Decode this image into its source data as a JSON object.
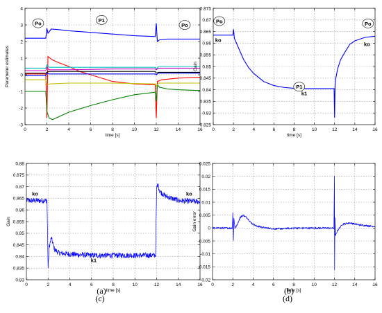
{
  "colors": {
    "blue": "#0000ff",
    "red": "#ff0000",
    "green": "#008000",
    "cyan": "#00bfbf",
    "magenta": "#bf00bf",
    "yellow": "#bfbf00",
    "black": "#000000",
    "grid": "#9a9a9a"
  },
  "chart_data": [
    {
      "id": "a",
      "panel_label": "(a)",
      "type": "line",
      "xlabel": "time [s]",
      "ylabel": "Parameter estimates",
      "xlim": [
        0,
        16
      ],
      "ylim": [
        -3,
        4
      ],
      "xticks": [
        0,
        2,
        4,
        6,
        8,
        10,
        12,
        14,
        16
      ],
      "yticks": [
        -3,
        -2,
        -1,
        0,
        1,
        2,
        3,
        4
      ],
      "grid": true,
      "series": [
        {
          "color": "blue",
          "x": [
            0,
            1.9,
            2.0,
            2.1,
            2.4,
            3,
            4,
            6,
            8,
            10,
            11.9,
            12.0,
            12.1,
            12.3,
            13,
            14,
            16
          ],
          "y": [
            2.2,
            2.2,
            2.8,
            2.5,
            2.75,
            2.72,
            2.65,
            2.55,
            2.45,
            2.35,
            2.3,
            3.1,
            2.0,
            2.1,
            2.15,
            2.15,
            2.15
          ]
        },
        {
          "color": "red",
          "x": [
            0,
            1.9,
            2.0,
            2.1,
            2.5,
            3,
            4,
            5,
            6,
            8,
            10,
            11.9,
            12.0,
            12.1,
            12.5,
            14,
            16
          ],
          "y": [
            0.05,
            0.05,
            -2.6,
            1.1,
            0.9,
            0.75,
            0.5,
            0.2,
            0.0,
            -0.4,
            -0.55,
            -0.6,
            -2.6,
            -0.4,
            -0.3,
            -0.2,
            -0.15
          ]
        },
        {
          "color": "green",
          "x": [
            0,
            1.9,
            2.0,
            2.2,
            2.5,
            3,
            4,
            6,
            8,
            10,
            11.9,
            12.0,
            12.1,
            12.3,
            13,
            14,
            16
          ],
          "y": [
            -1.0,
            -1.0,
            -2.2,
            -2.6,
            -2.7,
            -2.55,
            -2.25,
            -1.85,
            -1.5,
            -1.2,
            -1.05,
            -1.6,
            -0.6,
            -0.75,
            -0.85,
            -0.9,
            -0.95
          ]
        },
        {
          "color": "cyan",
          "x": [
            0,
            1.9,
            2.0,
            2.2,
            4,
            8,
            11.9,
            12.0,
            12.2,
            16
          ],
          "y": [
            0.4,
            0.4,
            0.6,
            0.45,
            0.45,
            0.45,
            0.45,
            0.35,
            0.5,
            0.5
          ]
        },
        {
          "color": "magenta",
          "x": [
            0,
            1.9,
            2.0,
            2.2,
            4,
            8,
            11.9,
            12.0,
            12.2,
            16
          ],
          "y": [
            0.25,
            0.25,
            0.45,
            0.3,
            0.3,
            0.35,
            0.35,
            0.3,
            0.4,
            0.4
          ]
        },
        {
          "color": "black",
          "x": [
            0,
            1.9,
            2.0,
            2.2,
            4,
            8,
            11.9,
            12.0,
            12.2,
            16
          ],
          "y": [
            0.1,
            0.1,
            0.15,
            0.2,
            0.2,
            0.2,
            0.2,
            0.1,
            0.15,
            0.15
          ]
        },
        {
          "color": "yellow",
          "x": [
            0,
            1.9,
            2.0,
            2.3,
            4,
            8,
            11.9,
            12.0,
            12.2,
            16
          ],
          "y": [
            -0.3,
            -0.3,
            -0.6,
            -0.55,
            -0.5,
            -0.5,
            -0.55,
            -0.7,
            -0.5,
            -0.5
          ]
        },
        {
          "color": "blue",
          "x": [
            0,
            1.9,
            2.0,
            2.2,
            4,
            8,
            11.9,
            12.0,
            12.2,
            16
          ],
          "y": [
            -0.05,
            -0.05,
            0.1,
            0.05,
            0.05,
            0.05,
            0.05,
            0.0,
            0.1,
            0.1
          ]
        }
      ],
      "annotations": [
        {
          "text": "Po",
          "x": 1.2,
          "y": 3.1,
          "circled": true
        },
        {
          "text": "P1",
          "x": 7.0,
          "y": 3.3,
          "circled": true
        },
        {
          "text": "Po",
          "x": 14.6,
          "y": 3.0,
          "circled": true
        }
      ]
    },
    {
      "id": "b",
      "panel_label": "(b)",
      "type": "line",
      "xlabel": "time [s]",
      "ylabel": "Gain",
      "xlim": [
        0,
        16
      ],
      "ylim": [
        0.825,
        0.875
      ],
      "xticks": [
        0,
        2,
        4,
        6,
        8,
        10,
        12,
        14,
        16
      ],
      "yticks": [
        0.825,
        0.83,
        0.835,
        0.84,
        0.845,
        0.85,
        0.855,
        0.86,
        0.865,
        0.87,
        0.875
      ],
      "grid": true,
      "series": [
        {
          "color": "blue",
          "x": [
            0,
            1.95,
            2.0,
            2.1,
            2.5,
            3,
            3.5,
            4,
            5,
            6,
            7,
            8,
            9,
            10,
            11,
            11.95,
            12.0,
            12.05,
            12.1,
            12.3,
            12.6,
            13,
            13.5,
            14,
            15,
            16
          ],
          "y": [
            0.8635,
            0.8635,
            0.866,
            0.862,
            0.858,
            0.853,
            0.8495,
            0.847,
            0.8435,
            0.8418,
            0.841,
            0.8406,
            0.8405,
            0.8405,
            0.8405,
            0.8405,
            0.828,
            0.842,
            0.8445,
            0.849,
            0.853,
            0.856,
            0.8595,
            0.861,
            0.8625,
            0.863
          ]
        }
      ],
      "annotations": [
        {
          "text": "Po",
          "x": 0.6,
          "y": 0.8695,
          "circled": true
        },
        {
          "text": "ko",
          "x": 0.5,
          "y": 0.8615,
          "circled": false
        },
        {
          "text": "P1",
          "x": 8.5,
          "y": 0.8413,
          "circled": true
        },
        {
          "text": "k1",
          "x": 9.0,
          "y": 0.8385,
          "circled": false
        },
        {
          "text": "Po",
          "x": 15.3,
          "y": 0.8685,
          "circled": true
        },
        {
          "text": "ko",
          "x": 15.2,
          "y": 0.8597,
          "circled": false
        }
      ]
    },
    {
      "id": "c",
      "panel_label": "(c)",
      "type": "line",
      "xlabel": "time [s]",
      "ylabel": "Gain",
      "xlim": [
        0,
        16
      ],
      "ylim": [
        0.83,
        0.88
      ],
      "xticks": [
        0,
        2,
        4,
        6,
        8,
        10,
        12,
        14,
        16
      ],
      "yticks": [
        0.83,
        0.835,
        0.84,
        0.845,
        0.85,
        0.855,
        0.86,
        0.865,
        0.87,
        0.875,
        0.88
      ],
      "grid": true,
      "noise": 0.0012,
      "series": [
        {
          "color": "blue",
          "x": [
            0,
            1.9,
            2.0,
            2.1,
            2.3,
            2.6,
            3,
            4,
            6,
            8,
            10,
            11.9,
            12.0,
            12.1,
            12.3,
            12.8,
            14,
            16
          ],
          "y": [
            0.864,
            0.864,
            0.835,
            0.844,
            0.848,
            0.843,
            0.8415,
            0.841,
            0.8405,
            0.8405,
            0.8405,
            0.8405,
            0.869,
            0.871,
            0.868,
            0.866,
            0.864,
            0.8635
          ]
        }
      ],
      "annotations": [
        {
          "text": "ko",
          "x": 0.8,
          "y": 0.867,
          "circled": false
        },
        {
          "text": "k1",
          "x": 6.2,
          "y": 0.8385,
          "circled": false
        },
        {
          "text": "ko",
          "x": 15.0,
          "y": 0.867,
          "circled": false
        }
      ]
    },
    {
      "id": "d",
      "panel_label": "(d)",
      "type": "line",
      "xlabel": "time [s]",
      "ylabel": "Gain error",
      "xlim": [
        0,
        16
      ],
      "ylim": [
        -0.02,
        0.025
      ],
      "xticks": [
        0,
        2,
        4,
        6,
        8,
        10,
        12,
        14,
        16
      ],
      "yticks": [
        -0.02,
        -0.015,
        -0.01,
        -0.005,
        0,
        0.005,
        0.01,
        0.015,
        0.02,
        0.025
      ],
      "grid": true,
      "noise": 0.0003,
      "series": [
        {
          "color": "blue",
          "x": [
            0,
            1.95,
            2.0,
            2.05,
            2.1,
            2.2,
            2.4,
            2.7,
            3.0,
            3.4,
            3.8,
            4.3,
            5,
            6,
            7,
            8,
            10,
            11.95,
            12.0,
            12.02,
            12.05,
            12.1,
            12.3,
            12.8,
            13.5,
            14.5,
            16
          ],
          "y": [
            0,
            0,
            0.006,
            -0.005,
            0.004,
            0.0,
            0.001,
            0.004,
            0.005,
            0.004,
            0.002,
            0.0008,
            0.0002,
            -0.0003,
            -0.0002,
            0.0,
            0.0,
            0.0,
            0.02,
            -0.016,
            0.004,
            -0.003,
            -0.001,
            0.0015,
            0.002,
            0.0012,
            0.0006
          ]
        }
      ],
      "annotations": []
    }
  ]
}
